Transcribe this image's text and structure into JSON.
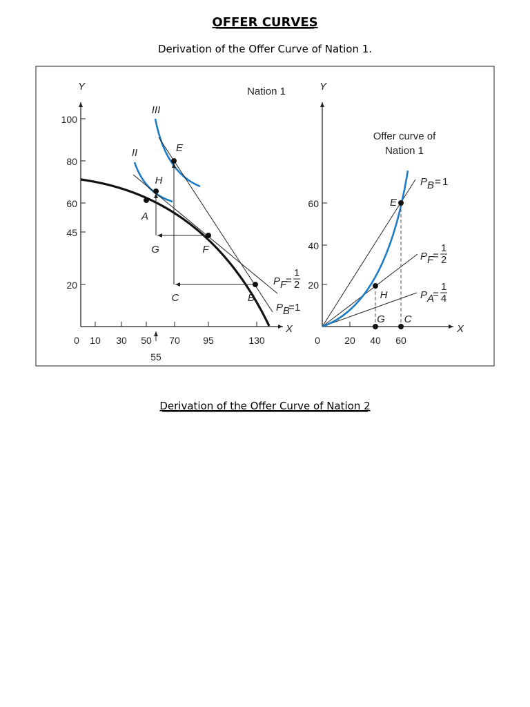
{
  "header": {
    "title": "OFFER CURVES",
    "subtitle": "Derivation of the Offer Curve of Nation 1."
  },
  "figure": {
    "left": {
      "title": "Nation 1",
      "y_label": "Y",
      "x_label": "X",
      "y_ticks": [
        "100",
        "80",
        "60",
        "45",
        "20"
      ],
      "x_ticks": [
        "0",
        "10",
        "30",
        "50",
        "70",
        "95",
        "130"
      ],
      "x_extra": "55",
      "curves": [
        "III",
        "II"
      ],
      "points": [
        "E",
        "H",
        "A",
        "G",
        "F",
        "C",
        "B"
      ],
      "price_lines": [
        {
          "p": "P",
          "sub": "F",
          "eq": "=",
          "num": "1",
          "den": "2"
        },
        {
          "p": "P",
          "sub": "B",
          "eq": "=",
          "value": "1"
        }
      ]
    },
    "right": {
      "y_label": "Y",
      "x_label": "X",
      "y_ticks": [
        "60",
        "40",
        "20"
      ],
      "x_ticks": [
        "0",
        "20",
        "40",
        "60"
      ],
      "curve_label": [
        "Offer curve of",
        "Nation 1"
      ],
      "points": [
        "E",
        "H",
        "G",
        "C"
      ],
      "price_lines": [
        {
          "p": "P",
          "sub": "B",
          "eq": "=",
          "value": "1"
        },
        {
          "p": "P",
          "sub": "F",
          "eq": "=",
          "num": "1",
          "den": "2"
        },
        {
          "p": "P",
          "sub": "A",
          "eq": "=",
          "num": "1",
          "den": "4"
        }
      ]
    }
  },
  "section2": {
    "title": "Derivation of the Offer Curve of Nation 2"
  }
}
